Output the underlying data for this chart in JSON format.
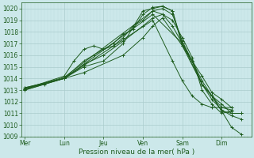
{
  "bg_color": "#cce8ea",
  "grid_color_major": "#aacccc",
  "grid_color_minor": "#bbdddd",
  "line_color": "#1e5c1e",
  "xlabel": "Pression niveau de la mer( hPa )",
  "xlabel_color": "#1e5c1e",
  "xtick_labels": [
    "Mer",
    "Lun",
    "Jeu",
    "Ven",
    "Sam",
    "Dim"
  ],
  "xtick_positions": [
    0,
    24,
    48,
    72,
    96,
    120
  ],
  "xlim": [
    -2,
    138
  ],
  "ylim": [
    1009,
    1020.5
  ],
  "yticks": [
    1009,
    1010,
    1011,
    1012,
    1013,
    1014,
    1015,
    1016,
    1017,
    1018,
    1019,
    1020
  ],
  "series": [
    {
      "x": [
        0,
        24,
        36,
        42,
        48,
        54,
        60,
        66,
        72,
        78,
        84,
        90,
        96,
        102,
        108,
        114,
        120,
        126,
        132
      ],
      "y": [
        1013.1,
        1014.0,
        1015.5,
        1016.0,
        1016.5,
        1017.0,
        1017.8,
        1018.2,
        1019.5,
        1020.1,
        1020.2,
        1019.8,
        1017.0,
        1015.5,
        1013.8,
        1012.5,
        1011.2,
        1011.0,
        1011.0
      ]
    },
    {
      "x": [
        0,
        24,
        30,
        36,
        42,
        48,
        54,
        60,
        66,
        72,
        78,
        84,
        90,
        96,
        102,
        108,
        114,
        120,
        126,
        132
      ],
      "y": [
        1013.1,
        1014.2,
        1015.5,
        1016.5,
        1016.8,
        1016.5,
        1016.8,
        1017.5,
        1018.5,
        1019.0,
        1019.8,
        1020.0,
        1019.5,
        1017.2,
        1015.5,
        1013.5,
        1012.2,
        1011.3,
        1010.8,
        1010.5
      ]
    },
    {
      "x": [
        0,
        24,
        36,
        48,
        60,
        72,
        78,
        84,
        90,
        96,
        102,
        108,
        114,
        120,
        126
      ],
      "y": [
        1013.1,
        1014.0,
        1015.0,
        1015.5,
        1017.0,
        1019.8,
        1020.0,
        1020.2,
        1019.8,
        1016.8,
        1015.5,
        1014.2,
        1012.8,
        1012.2,
        1011.5
      ]
    },
    {
      "x": [
        0,
        24,
        36,
        48,
        60,
        72,
        78,
        84,
        90,
        96,
        102,
        108,
        114,
        120,
        126
      ],
      "y": [
        1013.2,
        1014.0,
        1015.2,
        1016.0,
        1017.2,
        1018.5,
        1019.2,
        1019.5,
        1019.0,
        1017.5,
        1015.8,
        1013.0,
        1011.8,
        1011.0,
        1011.2
      ]
    },
    {
      "x": [
        0,
        12,
        24,
        36,
        60,
        72,
        78,
        84,
        96,
        108,
        114,
        120,
        126
      ],
      "y": [
        1013.0,
        1013.5,
        1014.0,
        1014.5,
        1016.0,
        1017.5,
        1018.5,
        1019.2,
        1016.8,
        1013.5,
        1012.5,
        1011.5,
        1011.3
      ]
    },
    {
      "x": [
        0,
        24,
        78,
        84,
        90,
        96,
        102,
        108,
        114,
        120,
        126,
        132
      ],
      "y": [
        1013.1,
        1014.1,
        1019.8,
        1019.5,
        1018.5,
        1017.0,
        1015.5,
        1013.5,
        1012.5,
        1011.2,
        1009.8,
        1009.2
      ]
    },
    {
      "x": [
        0,
        24,
        78,
        96,
        108,
        114,
        120,
        126,
        132
      ],
      "y": [
        1013.0,
        1014.0,
        1019.5,
        1017.0,
        1013.5,
        1012.5,
        1011.8,
        1011.0,
        1011.0
      ]
    },
    {
      "x": [
        0,
        24,
        78,
        90,
        96,
        102,
        108,
        114,
        120,
        126
      ],
      "y": [
        1013.2,
        1014.0,
        1019.0,
        1015.5,
        1013.8,
        1012.5,
        1011.8,
        1011.5,
        1011.5,
        1011.5
      ]
    }
  ]
}
